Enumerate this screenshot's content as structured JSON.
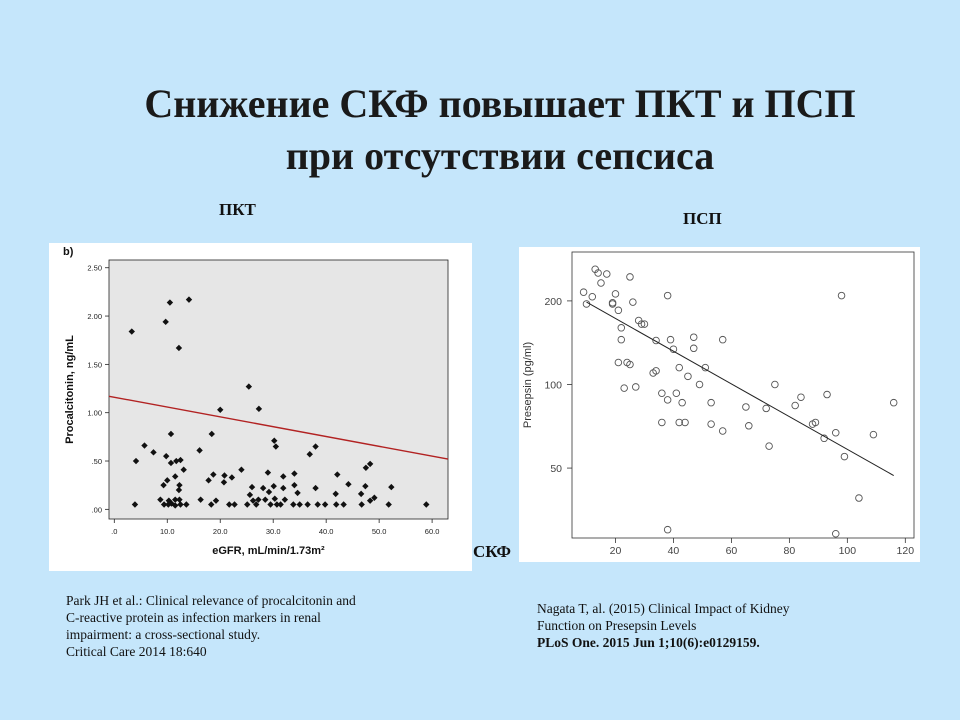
{
  "title": {
    "line1": "Снижение СКФ повышает ПКТ и ПСП",
    "line2": "при отсутствии сепсиса"
  },
  "labels": {
    "pct": "ПКТ",
    "psp": "ПСП",
    "skf": "СКФ"
  },
  "colors": {
    "background": "#c5e6fb",
    "left_plot_area": "#e6e6e6",
    "left_trend_line": "#b22222",
    "right_trend_line": "#222222"
  },
  "references": {
    "left": [
      "Park JH et al.: Clinical relevance of procalcitonin and",
      "C-reactive protein as infection markers in renal",
      "impairment: a cross-sectional study.",
      "Critical Care 2014 18:640"
    ],
    "right": [
      "Nagata T, al. (2015) Clinical Impact of Kidney",
      "Function  on Presepsin Levels",
      "PLoS One. 2015 Jun 1;10(6):e0129159."
    ]
  },
  "chart_data": [
    {
      "type": "scatter",
      "panel_label": "b)",
      "xlabel": "eGFR, mL/min/1.73m²",
      "ylabel": "Procalcitonin, ng/mL",
      "xlim": [
        -1,
        63
      ],
      "ylim": [
        -0.1,
        2.58
      ],
      "xticks": [
        0,
        10,
        20,
        30,
        40,
        50,
        60
      ],
      "xtick_labels": [
        ".0",
        "10.0",
        "20.0",
        "30.0",
        "40.0",
        "50.0",
        "60.0"
      ],
      "yticks": [
        0,
        0.5,
        1.0,
        1.5,
        2.0,
        2.5
      ],
      "ytick_labels": [
        ".00",
        ".50",
        "1.00",
        "1.50",
        "2.00",
        "2.50"
      ],
      "grid": false,
      "marker": "diamond",
      "trend_line": {
        "x": [
          -1,
          63
        ],
        "y": [
          1.17,
          0.52
        ]
      },
      "points": [
        [
          3.3,
          1.84
        ],
        [
          9.7,
          1.94
        ],
        [
          10.5,
          2.14
        ],
        [
          14.1,
          2.17
        ],
        [
          12.2,
          1.67
        ],
        [
          25.4,
          1.27
        ],
        [
          27.3,
          1.04
        ],
        [
          20.0,
          1.03
        ],
        [
          18.4,
          0.78
        ],
        [
          10.7,
          0.78
        ],
        [
          30.2,
          0.71
        ],
        [
          30.5,
          0.65
        ],
        [
          38.0,
          0.65
        ],
        [
          5.7,
          0.66
        ],
        [
          16.1,
          0.61
        ],
        [
          7.4,
          0.59
        ],
        [
          36.9,
          0.57
        ],
        [
          4.1,
          0.5
        ],
        [
          9.8,
          0.55
        ],
        [
          11.7,
          0.5
        ],
        [
          12.5,
          0.51
        ],
        [
          10.7,
          0.48
        ],
        [
          48.3,
          0.47
        ],
        [
          47.5,
          0.43
        ],
        [
          13.1,
          0.41
        ],
        [
          24.0,
          0.41
        ],
        [
          29.0,
          0.38
        ],
        [
          34.0,
          0.37
        ],
        [
          42.1,
          0.36
        ],
        [
          18.7,
          0.36
        ],
        [
          20.8,
          0.35
        ],
        [
          31.9,
          0.34
        ],
        [
          11.5,
          0.34
        ],
        [
          22.2,
          0.33
        ],
        [
          10.0,
          0.3
        ],
        [
          17.8,
          0.3
        ],
        [
          20.7,
          0.28
        ],
        [
          9.3,
          0.25
        ],
        [
          12.3,
          0.25
        ],
        [
          44.2,
          0.26
        ],
        [
          34.0,
          0.25
        ],
        [
          30.1,
          0.24
        ],
        [
          47.4,
          0.24
        ],
        [
          26.0,
          0.23
        ],
        [
          28.1,
          0.22
        ],
        [
          31.9,
          0.22
        ],
        [
          38.0,
          0.22
        ],
        [
          12.2,
          0.2
        ],
        [
          25.6,
          0.15
        ],
        [
          29.2,
          0.18
        ],
        [
          34.6,
          0.17
        ],
        [
          41.8,
          0.16
        ],
        [
          46.6,
          0.16
        ],
        [
          8.7,
          0.1
        ],
        [
          10.3,
          0.09
        ],
        [
          11.5,
          0.1
        ],
        [
          12.3,
          0.1
        ],
        [
          16.3,
          0.1
        ],
        [
          19.2,
          0.09
        ],
        [
          26.2,
          0.09
        ],
        [
          27.2,
          0.1
        ],
        [
          28.5,
          0.1
        ],
        [
          30.3,
          0.11
        ],
        [
          32.2,
          0.1
        ],
        [
          48.3,
          0.09
        ],
        [
          3.9,
          0.05
        ],
        [
          9.4,
          0.05
        ],
        [
          10.2,
          0.05
        ],
        [
          10.8,
          0.06
        ],
        [
          11.5,
          0.04
        ],
        [
          12.5,
          0.05
        ],
        [
          13.6,
          0.05
        ],
        [
          18.3,
          0.05
        ],
        [
          21.7,
          0.05
        ],
        [
          22.7,
          0.05
        ],
        [
          25.1,
          0.05
        ],
        [
          26.8,
          0.05
        ],
        [
          29.5,
          0.05
        ],
        [
          30.7,
          0.05
        ],
        [
          31.4,
          0.05
        ],
        [
          33.8,
          0.05
        ],
        [
          35.0,
          0.05
        ],
        [
          36.5,
          0.05
        ],
        [
          38.4,
          0.05
        ],
        [
          39.8,
          0.05
        ],
        [
          41.9,
          0.05
        ],
        [
          43.3,
          0.05
        ],
        [
          46.7,
          0.05
        ],
        [
          51.8,
          0.05
        ],
        [
          58.9,
          0.05
        ],
        [
          52.3,
          0.23
        ],
        [
          49.1,
          0.12
        ]
      ]
    },
    {
      "type": "scatter",
      "ylabel": "Presepsin (pg/ml)",
      "xlabel": "",
      "y_scale": "log",
      "xlim": [
        5,
        123
      ],
      "ylim": [
        28,
        300
      ],
      "xticks": [
        20,
        40,
        60,
        80,
        100,
        120
      ],
      "yticks": [
        50,
        100,
        200
      ],
      "grid": false,
      "marker": "open-circle",
      "trend_line": {
        "x": [
          10,
          116
        ],
        "y": [
          198,
          47
        ]
      },
      "points": [
        [
          9,
          215
        ],
        [
          10,
          195
        ],
        [
          12,
          207
        ],
        [
          13,
          260
        ],
        [
          14,
          252
        ],
        [
          15,
          232
        ],
        [
          17,
          250
        ],
        [
          19,
          195
        ],
        [
          19,
          197
        ],
        [
          20,
          212
        ],
        [
          21,
          185
        ],
        [
          21,
          120
        ],
        [
          22,
          160
        ],
        [
          22,
          145
        ],
        [
          23,
          97
        ],
        [
          24,
          120
        ],
        [
          25,
          244
        ],
        [
          25,
          118
        ],
        [
          26,
          198
        ],
        [
          27,
          98
        ],
        [
          28,
          170
        ],
        [
          29,
          165
        ],
        [
          30,
          165
        ],
        [
          33,
          110
        ],
        [
          34,
          112
        ],
        [
          34,
          144
        ],
        [
          36,
          93
        ],
        [
          36,
          73
        ],
        [
          38,
          88
        ],
        [
          38,
          30
        ],
        [
          38,
          209
        ],
        [
          39,
          145
        ],
        [
          40,
          134
        ],
        [
          41,
          93
        ],
        [
          42,
          115
        ],
        [
          42,
          73
        ],
        [
          43,
          86
        ],
        [
          44,
          73
        ],
        [
          45,
          107
        ],
        [
          47,
          135
        ],
        [
          47,
          148
        ],
        [
          49,
          100
        ],
        [
          51,
          115
        ],
        [
          53,
          86
        ],
        [
          53,
          72
        ],
        [
          57,
          68
        ],
        [
          57,
          145
        ],
        [
          65,
          83
        ],
        [
          66,
          71
        ],
        [
          72,
          82
        ],
        [
          73,
          60
        ],
        [
          75,
          100
        ],
        [
          82,
          84
        ],
        [
          84,
          90
        ],
        [
          88,
          72
        ],
        [
          89,
          73
        ],
        [
          92,
          64
        ],
        [
          93,
          92
        ],
        [
          96,
          29
        ],
        [
          96,
          67
        ],
        [
          98,
          209
        ],
        [
          99,
          55
        ],
        [
          104,
          39
        ],
        [
          109,
          66
        ],
        [
          116,
          86
        ]
      ]
    }
  ]
}
